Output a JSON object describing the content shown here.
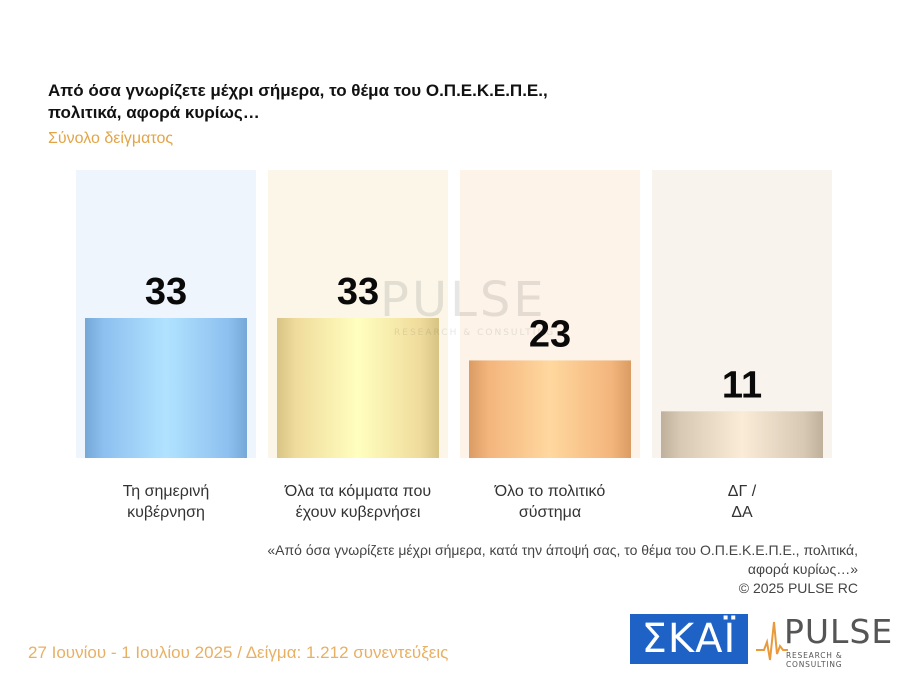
{
  "header": {
    "title": "Από όσα γνωρίζετε μέχρι σήμερα, το θέμα του  Ο.Π.Ε.Κ.Ε.Π.Ε.,  πολιτικά, αφορά κυρίως…",
    "subtitle": "Σύνολο δείγματος"
  },
  "chart_data": {
    "type": "bar",
    "categories": [
      [
        "Τη σημερινή",
        "κυβέρνηση"
      ],
      [
        "Όλα τα κόμματα που",
        "έχουν κυβερνήσει"
      ],
      [
        "Όλο το πολιτικό",
        "σύστημα"
      ],
      [
        "ΔΓ /",
        "ΔΑ"
      ]
    ],
    "values": [
      33,
      33,
      23,
      11
    ],
    "colors": [
      "#8ec0f0",
      "#f0dc9c",
      "#f3b57c",
      "#d7c9b4"
    ],
    "bg_colors": [
      "#eef5fc",
      "#fbf6e8",
      "#fdf3e8",
      "#f8f3ec"
    ],
    "ylim": [
      0,
      100
    ],
    "grid": false,
    "legend": "none"
  },
  "watermark": {
    "text": "PULSE",
    "sub": "RESEARCH & CONSULTING"
  },
  "note": {
    "question": "«Από όσα γνωρίζετε μέχρι σήμερα, κατά την άποψή σας, το θέμα του Ο.Π.Ε.Κ.Ε.Π.Ε., πολιτικά, αφορά κυρίως…»",
    "copyright": "©  2025  PULSE RC"
  },
  "footer": {
    "text": "27 Ιουνίου - 1 Ιουλίου 2025  /  Δείγμα:  1.212 συνεντεύξεις"
  },
  "logos": {
    "skai": "ΣΚΑΪ",
    "pulse": "PULSE",
    "pulse_sub": "RESEARCH & CONSULTING"
  },
  "icons": {
    "pulse_wave": "pulse-wave-icon"
  }
}
